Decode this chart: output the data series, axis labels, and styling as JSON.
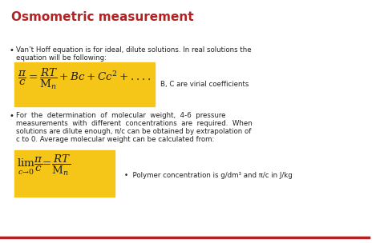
{
  "title": "Osmometric measurement",
  "title_color": "#b22222",
  "title_fontsize": 11,
  "bg_color": "#ffffff",
  "bullet1_text1": "Van’t Hoff equation is for ideal, dilute solutions. In real solutions the",
  "bullet1_text2": "equation will be following:",
  "eq1_box_color": "#f5c518",
  "eq1_latex": "$\\dfrac{\\pi}{c} = \\dfrac{RT}{\\mathrm{M}_n} + Bc + Cc^2 +....$",
  "eq1_note": "B, C are virial coefficients",
  "bullet2_text1": "For  the  determination  of  molecular  weight,  4-6  pressure",
  "bullet2_text2": "measurements  with  different  concentrations  are  required.  When",
  "bullet2_text3": "solutions are dilute enough, π/c can be obtained by extrapolation of",
  "bullet2_text4": "c to 0. Average molecular weight can be calculated from:",
  "eq2_box_color": "#f5c518",
  "eq2_latex": "$\\lim_{c \\to 0}\\dfrac{\\pi}{c} = \\dfrac{RT}{\\mathrm{M}_n}$",
  "eq2_note": "Polymer concentration is g/dm³ and π/c in J/kg",
  "bottom_line_color": "#b22222",
  "text_color": "#222222",
  "body_fontsize": 6.2
}
